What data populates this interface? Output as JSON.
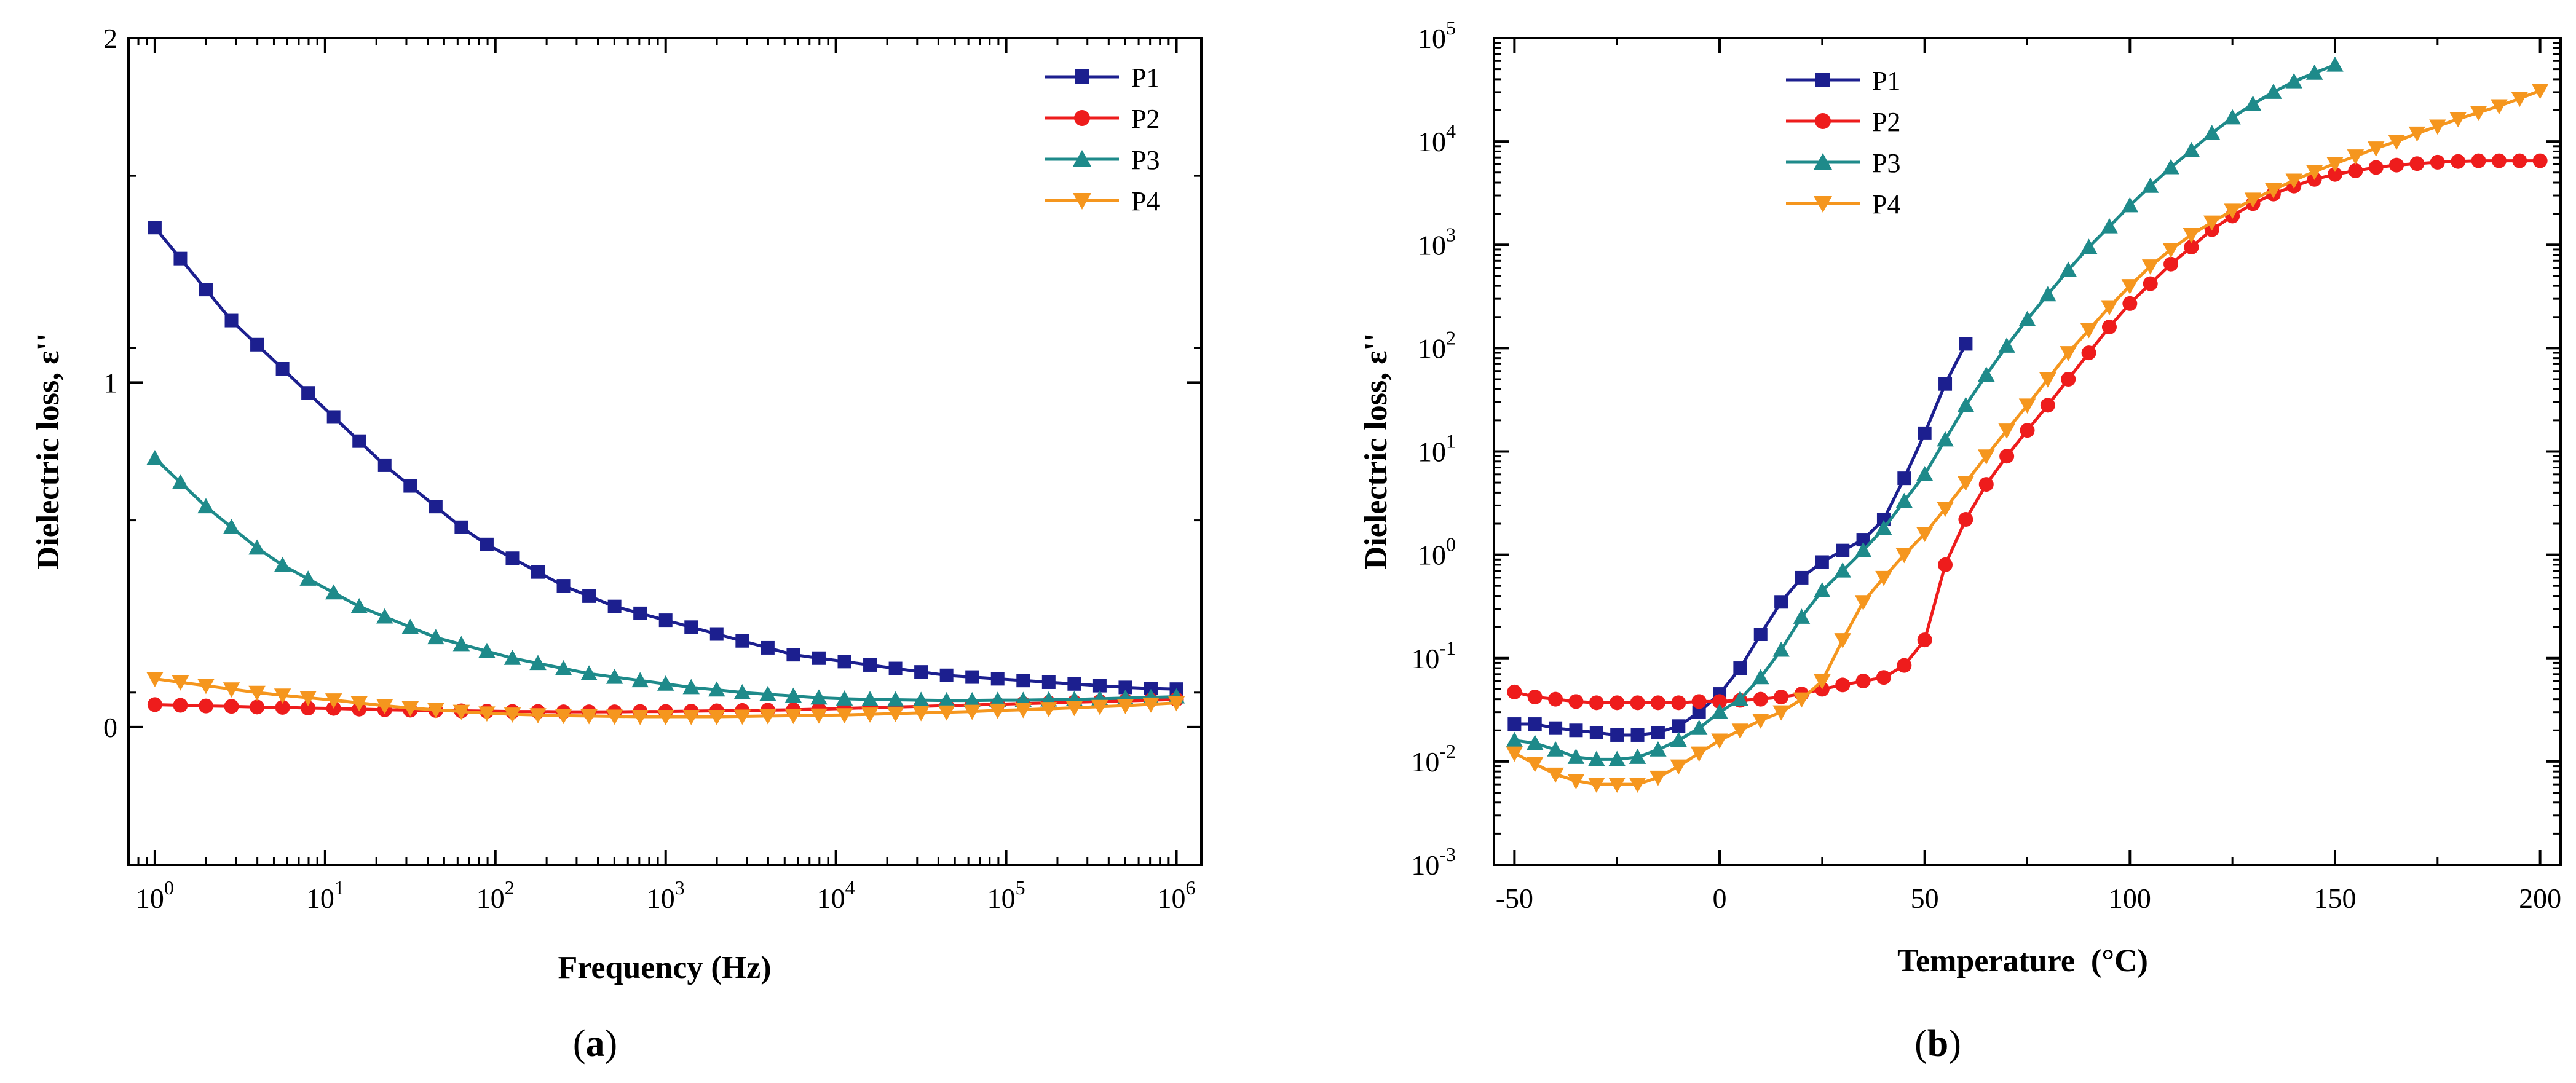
{
  "colors": {
    "P1": "#1c1f8f",
    "P2": "#ee1c1c",
    "P3": "#1e8a8a",
    "P4": "#f5961e",
    "axis": "#000000"
  },
  "chart_data": [
    {
      "panel_label_open": "(",
      "panel_label_letter": "a",
      "panel_label_close": ")",
      "type": "line",
      "x_scale": "log",
      "y_scale": "linear",
      "xlabel": "Frequency (Hz)",
      "ylabel": "Dielectric loss, ε''",
      "xlim": [
        0.7,
        1400000
      ],
      "ylim": [
        -0.4,
        2
      ],
      "x_ticks": [
        {
          "value": 1,
          "base": "10",
          "exp": "0"
        },
        {
          "value": 10,
          "base": "10",
          "exp": "1"
        },
        {
          "value": 100,
          "base": "10",
          "exp": "2"
        },
        {
          "value": 1000,
          "base": "10",
          "exp": "3"
        },
        {
          "value": 10000,
          "base": "10",
          "exp": "4"
        },
        {
          "value": 100000,
          "base": "10",
          "exp": "5"
        },
        {
          "value": 1000000,
          "base": "10",
          "exp": "6"
        }
      ],
      "y_ticks": [
        {
          "value": 0,
          "label": "0"
        },
        {
          "value": 1,
          "label": "1"
        },
        {
          "value": 2,
          "label": "2"
        }
      ],
      "legend_position": "top-right",
      "x_points": {
        "start": 1,
        "end": 1000000,
        "count": 41
      },
      "series": [
        {
          "name": "P1",
          "marker": "square",
          "values": [
            1.45,
            1.36,
            1.27,
            1.18,
            1.11,
            1.04,
            0.97,
            0.9,
            0.83,
            0.76,
            0.7,
            0.64,
            0.58,
            0.53,
            0.49,
            0.45,
            0.41,
            0.38,
            0.35,
            0.33,
            0.31,
            0.29,
            0.27,
            0.25,
            0.23,
            0.21,
            0.2,
            0.19,
            0.18,
            0.17,
            0.16,
            0.15,
            0.145,
            0.14,
            0.135,
            0.13,
            0.125,
            0.12,
            0.115,
            0.112,
            0.11
          ]
        },
        {
          "name": "P2",
          "marker": "circle",
          "values": [
            0.065,
            0.063,
            0.061,
            0.06,
            0.058,
            0.057,
            0.055,
            0.054,
            0.052,
            0.05,
            0.049,
            0.048,
            0.047,
            0.046,
            0.045,
            0.045,
            0.044,
            0.044,
            0.044,
            0.045,
            0.045,
            0.046,
            0.047,
            0.048,
            0.049,
            0.05,
            0.052,
            0.054,
            0.056,
            0.058,
            0.06,
            0.062,
            0.064,
            0.066,
            0.068,
            0.07,
            0.072,
            0.074,
            0.076,
            0.078,
            0.08
          ]
        },
        {
          "name": "P3",
          "marker": "triangle-up",
          "values": [
            0.78,
            0.71,
            0.64,
            0.58,
            0.52,
            0.47,
            0.43,
            0.39,
            0.35,
            0.32,
            0.29,
            0.26,
            0.24,
            0.22,
            0.2,
            0.185,
            0.17,
            0.155,
            0.145,
            0.135,
            0.125,
            0.115,
            0.108,
            0.1,
            0.095,
            0.09,
            0.085,
            0.082,
            0.08,
            0.079,
            0.078,
            0.077,
            0.077,
            0.078,
            0.078,
            0.079,
            0.08,
            0.082,
            0.084,
            0.086,
            0.088
          ]
        },
        {
          "name": "P4",
          "marker": "triangle-down",
          "values": [
            0.14,
            0.13,
            0.12,
            0.11,
            0.1,
            0.092,
            0.085,
            0.078,
            0.07,
            0.062,
            0.055,
            0.05,
            0.045,
            0.04,
            0.037,
            0.035,
            0.033,
            0.032,
            0.031,
            0.03,
            0.03,
            0.03,
            0.03,
            0.031,
            0.032,
            0.033,
            0.034,
            0.035,
            0.037,
            0.039,
            0.041,
            0.043,
            0.045,
            0.048,
            0.05,
            0.053,
            0.056,
            0.059,
            0.062,
            0.066,
            0.07
          ]
        }
      ]
    },
    {
      "panel_label_open": "(",
      "panel_label_letter": "b",
      "panel_label_close": ")",
      "type": "line",
      "x_scale": "linear",
      "y_scale": "log",
      "xlabel": "Temperature  (°C)",
      "ylabel": "Dielectric loss, ε''",
      "xlim": [
        -55,
        205
      ],
      "ylim": [
        0.001,
        100000
      ],
      "x_ticks": [
        {
          "value": -50,
          "label": "-50"
        },
        {
          "value": 0,
          "label": "0"
        },
        {
          "value": 50,
          "label": "50"
        },
        {
          "value": 100,
          "label": "100"
        },
        {
          "value": 150,
          "label": "150"
        },
        {
          "value": 200,
          "label": "200"
        }
      ],
      "y_ticks": [
        {
          "value": 0.001,
          "base": "10",
          "exp": "-3"
        },
        {
          "value": 0.01,
          "base": "10",
          "exp": "-2"
        },
        {
          "value": 0.1,
          "base": "10",
          "exp": "-1"
        },
        {
          "value": 1,
          "base": "10",
          "exp": "0"
        },
        {
          "value": 10,
          "base": "10",
          "exp": "1"
        },
        {
          "value": 100,
          "base": "10",
          "exp": "2"
        },
        {
          "value": 1000,
          "base": "10",
          "exp": "3"
        },
        {
          "value": 10000,
          "base": "10",
          "exp": "4"
        },
        {
          "value": 100000,
          "base": "10",
          "exp": "5"
        }
      ],
      "legend_position": "top-left",
      "series": [
        {
          "name": "P1",
          "marker": "square",
          "x": [
            -50,
            -45,
            -40,
            -35,
            -30,
            -25,
            -20,
            -15,
            -10,
            -5,
            0,
            5,
            10,
            15,
            20,
            25,
            30,
            35,
            40,
            45,
            50,
            55,
            60
          ],
          "values": [
            0.023,
            0.023,
            0.021,
            0.02,
            0.019,
            0.018,
            0.018,
            0.019,
            0.022,
            0.03,
            0.045,
            0.08,
            0.17,
            0.35,
            0.6,
            0.85,
            1.1,
            1.4,
            2.2,
            5.5,
            15,
            45,
            110
          ]
        },
        {
          "name": "P2",
          "marker": "circle",
          "x": [
            -50,
            -45,
            -40,
            -35,
            -30,
            -25,
            -20,
            -15,
            -10,
            -5,
            0,
            5,
            10,
            15,
            20,
            25,
            30,
            35,
            40,
            45,
            50,
            55,
            60,
            65,
            70,
            75,
            80,
            85,
            90,
            95,
            100,
            105,
            110,
            115,
            120,
            125,
            130,
            135,
            140,
            145,
            150,
            155,
            160,
            165,
            170,
            175,
            180,
            185,
            190,
            195,
            200
          ],
          "values": [
            0.047,
            0.042,
            0.04,
            0.038,
            0.037,
            0.037,
            0.037,
            0.037,
            0.037,
            0.038,
            0.038,
            0.039,
            0.04,
            0.042,
            0.045,
            0.05,
            0.055,
            0.06,
            0.065,
            0.085,
            0.15,
            0.8,
            2.2,
            4.8,
            9,
            16,
            28,
            50,
            90,
            160,
            270,
            420,
            650,
            950,
            1400,
            1900,
            2500,
            3100,
            3700,
            4300,
            4800,
            5200,
            5600,
            5900,
            6100,
            6300,
            6400,
            6500,
            6500,
            6500,
            6500
          ]
        },
        {
          "name": "P3",
          "marker": "triangle-up",
          "x": [
            -50,
            -45,
            -40,
            -35,
            -30,
            -25,
            -20,
            -15,
            -10,
            -5,
            0,
            5,
            10,
            15,
            20,
            25,
            30,
            35,
            40,
            45,
            50,
            55,
            60,
            65,
            70,
            75,
            80,
            85,
            90,
            95,
            100,
            105,
            110,
            115,
            120,
            125,
            130,
            135,
            140,
            145,
            150
          ],
          "values": [
            0.016,
            0.015,
            0.013,
            0.011,
            0.0105,
            0.0105,
            0.011,
            0.013,
            0.016,
            0.021,
            0.03,
            0.04,
            0.065,
            0.12,
            0.25,
            0.45,
            0.7,
            1.1,
            1.8,
            3.3,
            6,
            13,
            28,
            55,
            105,
            190,
            330,
            570,
            950,
            1500,
            2400,
            3700,
            5600,
            8200,
            12000,
            17000,
            23000,
            30000,
            38000,
            46000,
            55000
          ]
        },
        {
          "name": "P4",
          "marker": "triangle-down",
          "x": [
            -50,
            -45,
            -40,
            -35,
            -30,
            -25,
            -20,
            -15,
            -10,
            -5,
            0,
            5,
            10,
            15,
            20,
            25,
            30,
            35,
            40,
            45,
            50,
            55,
            60,
            65,
            70,
            75,
            80,
            85,
            90,
            95,
            100,
            105,
            110,
            115,
            120,
            125,
            130,
            135,
            140,
            145,
            150,
            155,
            160,
            165,
            170,
            175,
            180,
            185,
            190,
            195,
            200
          ],
          "values": [
            0.012,
            0.0095,
            0.0075,
            0.0065,
            0.006,
            0.006,
            0.006,
            0.007,
            0.009,
            0.012,
            0.016,
            0.02,
            0.025,
            0.03,
            0.04,
            0.06,
            0.15,
            0.35,
            0.6,
            1,
            1.6,
            2.8,
            5,
            9,
            16,
            28,
            50,
            90,
            150,
            250,
            400,
            620,
            900,
            1250,
            1650,
            2150,
            2750,
            3400,
            4200,
            5100,
            6100,
            7200,
            8600,
            10000,
            12000,
            14000,
            16500,
            19000,
            22000,
            26000,
            31000
          ]
        }
      ]
    }
  ]
}
